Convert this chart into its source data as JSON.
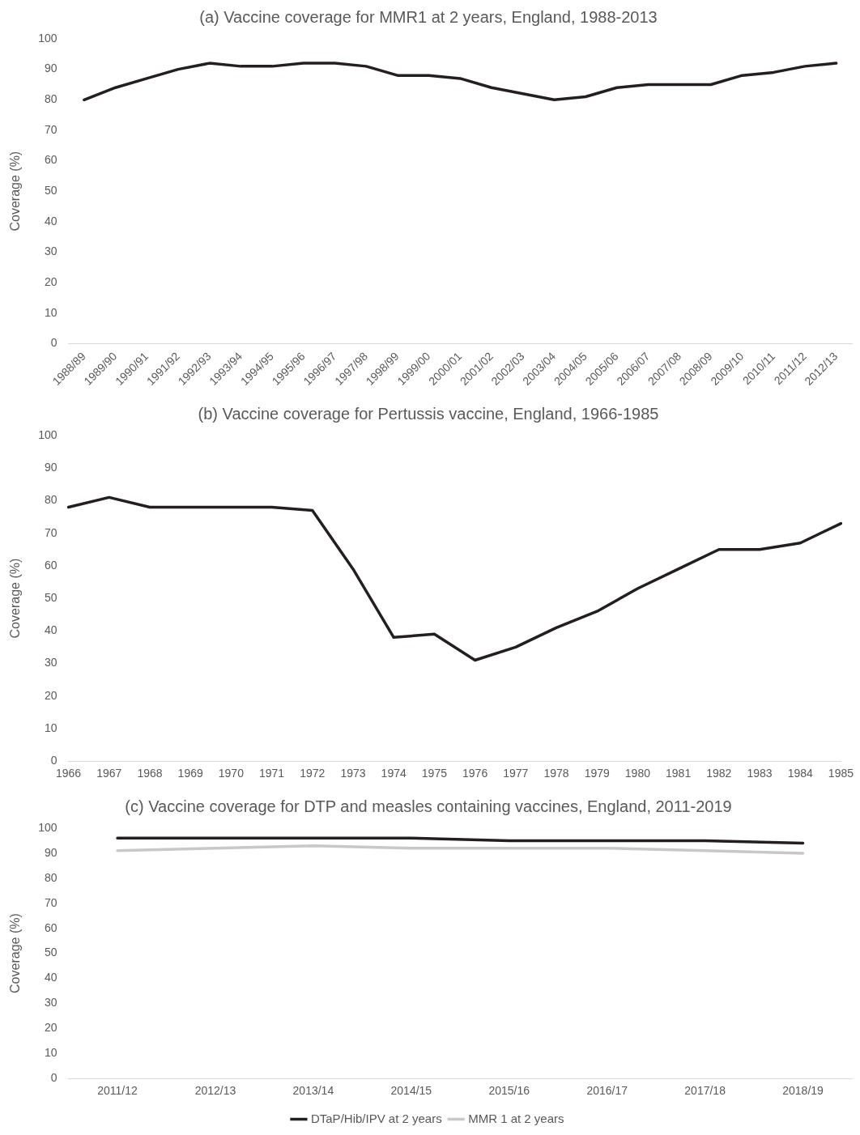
{
  "chart_data": [
    {
      "type": "line",
      "title": "(a) Vaccine coverage for MMR1 at 2 years, England, 1988-2013",
      "ylabel": "Coverage (%)",
      "categories": [
        "1988/89",
        "1989/90",
        "1990/91",
        "1991/92",
        "1992/93",
        "1993/94",
        "1994/95",
        "1995/96",
        "1996/97",
        "1997/98",
        "1998/99",
        "1999/00",
        "2000/01",
        "2001/02",
        "2002/03",
        "2003/04",
        "2004/05",
        "2005/06",
        "2006/07",
        "2007/08",
        "2008/09",
        "2009/10",
        "2010/11",
        "2011/12",
        "2012/13"
      ],
      "series": [
        {
          "color": "#231f20",
          "values": [
            80,
            84,
            87,
            90,
            92,
            91,
            91,
            92,
            92,
            91,
            88,
            88,
            87,
            84,
            82,
            80,
            81,
            84,
            85,
            85,
            85,
            88,
            89,
            91,
            92
          ]
        }
      ],
      "ylim": [
        0,
        100
      ],
      "yticks": [
        0,
        10,
        20,
        30,
        40,
        50,
        60,
        70,
        80,
        90,
        100
      ],
      "grid": false,
      "legend": false,
      "marker": "none",
      "line_style": "solid"
    },
    {
      "type": "line",
      "title": "(b) Vaccine coverage for Pertussis vaccine, England, 1966-1985",
      "ylabel": "Coverage (%)",
      "categories": [
        "1966",
        "1967",
        "1968",
        "1969",
        "1970",
        "1971",
        "1972",
        "1973",
        "1974",
        "1975",
        "1976",
        "1977",
        "1978",
        "1979",
        "1980",
        "1981",
        "1982",
        "1983",
        "1984",
        "1985"
      ],
      "series": [
        {
          "color": "#231f20",
          "values": [
            78,
            81,
            78,
            78,
            78,
            78,
            77,
            59,
            38,
            39,
            31,
            35,
            41,
            46,
            53,
            59,
            65,
            65,
            67,
            73
          ]
        }
      ],
      "ylim": [
        0,
        100
      ],
      "yticks": [
        0,
        10,
        20,
        30,
        40,
        50,
        60,
        70,
        80,
        90,
        100
      ],
      "grid": false,
      "legend": false,
      "marker": "none",
      "line_style": "solid"
    },
    {
      "type": "line",
      "title": "(c) Vaccine coverage for DTP and measles containing vaccines, England, 2011-2019",
      "ylabel": "Coverage (%)",
      "categories": [
        "2011/12",
        "2012/13",
        "2013/14",
        "2014/15",
        "2015/16",
        "2016/17",
        "2017/18",
        "2018/19"
      ],
      "series": [
        {
          "name": "DTaP/Hib/IPV at 2 years",
          "color": "#231f20",
          "values": [
            96,
            96,
            96,
            96,
            95,
            95,
            95,
            94
          ]
        },
        {
          "name": "MMR 1 at 2 years",
          "color": "#c8c8c8",
          "values": [
            91,
            92,
            93,
            92,
            92,
            92,
            91,
            90
          ]
        }
      ],
      "ylim": [
        0,
        100
      ],
      "yticks": [
        0,
        10,
        20,
        30,
        40,
        50,
        60,
        70,
        80,
        90,
        100
      ],
      "grid": false,
      "legend": "bottom",
      "marker": "none",
      "line_style": "solid"
    }
  ]
}
